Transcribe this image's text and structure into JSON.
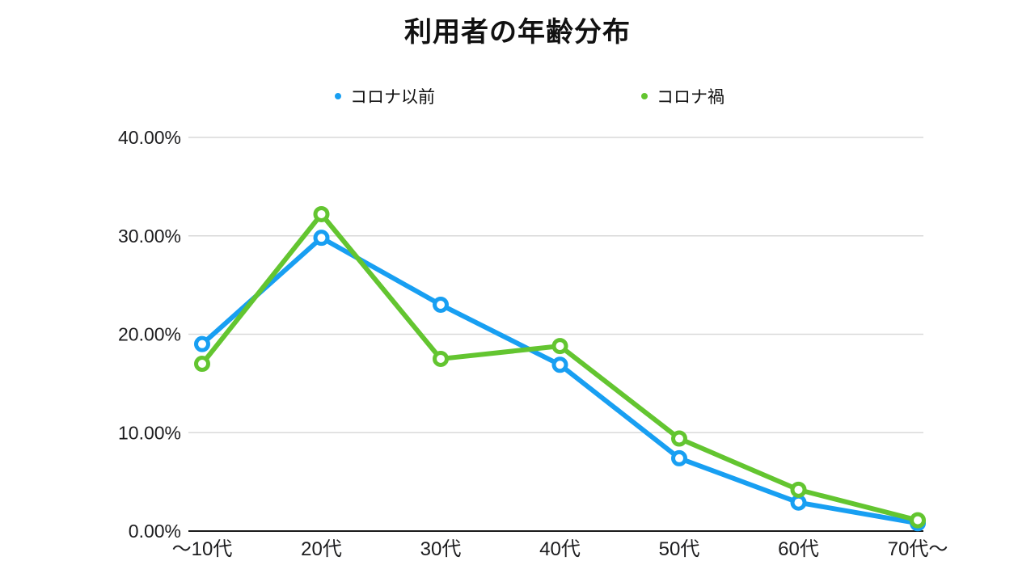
{
  "title": "利用者の年齢分布",
  "legend": {
    "position": "top"
  },
  "colors": {
    "background": "#ffffff",
    "grid": "#d9d9d9",
    "axis": "#1a1a1a",
    "text": "#1c1c1e",
    "series_blue": "#189ff2",
    "series_green": "#63c530"
  },
  "chart_data": {
    "type": "line",
    "title": "利用者の年齢分布",
    "categories": [
      "〜10代",
      "20代",
      "30代",
      "40代",
      "50代",
      "60代",
      "70代〜"
    ],
    "series": [
      {
        "name": "コロナ以前",
        "color": "#189ff2",
        "values": [
          19.0,
          29.8,
          23.0,
          16.9,
          7.4,
          2.9,
          0.8
        ]
      },
      {
        "name": "コロナ禍",
        "color": "#63c530",
        "values": [
          17.0,
          32.2,
          17.5,
          18.8,
          9.4,
          4.2,
          1.1
        ]
      }
    ],
    "xlabel": "",
    "ylabel": "",
    "ylim": [
      0,
      40
    ],
    "yticks": [
      0,
      10,
      20,
      30,
      40
    ],
    "ytick_labels": [
      "0.00%",
      "10.00%",
      "20.00%",
      "30.00%",
      "40.00%"
    ],
    "grid": "horizontal",
    "legend_position": "top",
    "marker": "open-circle"
  }
}
